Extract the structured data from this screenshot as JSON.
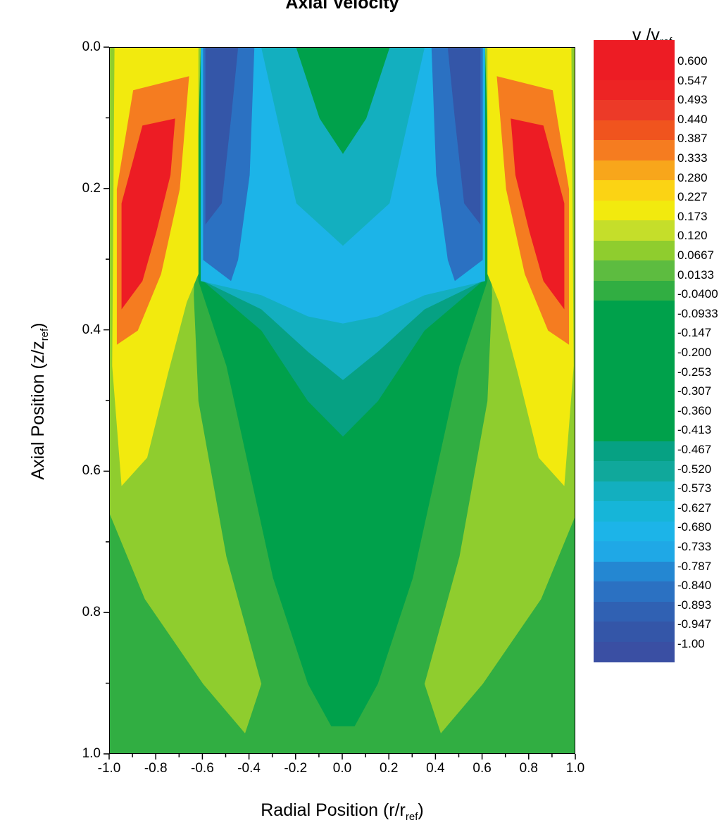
{
  "chart_data": {
    "type": "heatmap",
    "title": "Axial Velocity",
    "xlabel": "Radial Position (r/r",
    "xlabel_sub": "ref",
    "xlabel_tail": ")",
    "ylabel": "Axial Position (z/z",
    "ylabel_sub": "ref",
    "ylabel_tail": ")",
    "xlim": [
      -1.0,
      1.0
    ],
    "ylim": [
      0.0,
      1.0
    ],
    "y_inverted": true,
    "x_ticks": [
      "-1.0",
      "-0.8",
      "-0.6",
      "-0.4",
      "-0.2",
      "0.0",
      "0.2",
      "0.4",
      "0.6",
      "0.8",
      "1.0"
    ],
    "y_ticks": [
      "0.0",
      "0.2",
      "0.4",
      "0.6",
      "0.8",
      "1.0"
    ],
    "legend": {
      "title": "v /v",
      "title_sub": "ref",
      "placement": "right",
      "levels": [
        "0.600",
        "0.547",
        "0.493",
        "0.440",
        "0.387",
        "0.333",
        "0.280",
        "0.227",
        "0.173",
        "0.120",
        "0.0667",
        "0.0133",
        "-0.0400",
        "-0.0933",
        "-0.147",
        "-0.200",
        "-0.253",
        "-0.307",
        "-0.360",
        "-0.413",
        "-0.467",
        "-0.520",
        "-0.573",
        "-0.627",
        "-0.680",
        "-0.733",
        "-0.787",
        "-0.840",
        "-0.893",
        "-0.947",
        "-1.00"
      ],
      "colors": [
        "#ed1c24",
        "#ed1c24",
        "#ed2424",
        "#ec3a28",
        "#f0541e",
        "#f57c20",
        "#f8a61b",
        "#fbd314",
        "#f2ea0e",
        "#c5de2a",
        "#8fcd2e",
        "#5dbc40",
        "#31ae42",
        "#00a14b",
        "#00a14b",
        "#00a14b",
        "#00a14b",
        "#00a14b",
        "#00a14b",
        "#00a14b",
        "#06a183",
        "#10a89b",
        "#13afbf",
        "#16b5d8",
        "#1cb4e8",
        "#1fa8e6",
        "#2487d2",
        "#2b71c2",
        "#3061b3",
        "#3456a8",
        "#3a4fa3"
      ]
    },
    "field_regions": {
      "background": "#31ae42",
      "core": "#00a14b",
      "jet_outer": "#8fcd2e",
      "jet_mid": "#f2ea0e",
      "jet_orange": "#f57c20",
      "jet_red": "#ed1c24",
      "recirc_light": "#1cb4e8",
      "recirc_mid": "#13afbf",
      "recirc_teal": "#06a183",
      "recirc_dark": "#2b71c2",
      "recirc_deep": "#3456a8"
    }
  }
}
